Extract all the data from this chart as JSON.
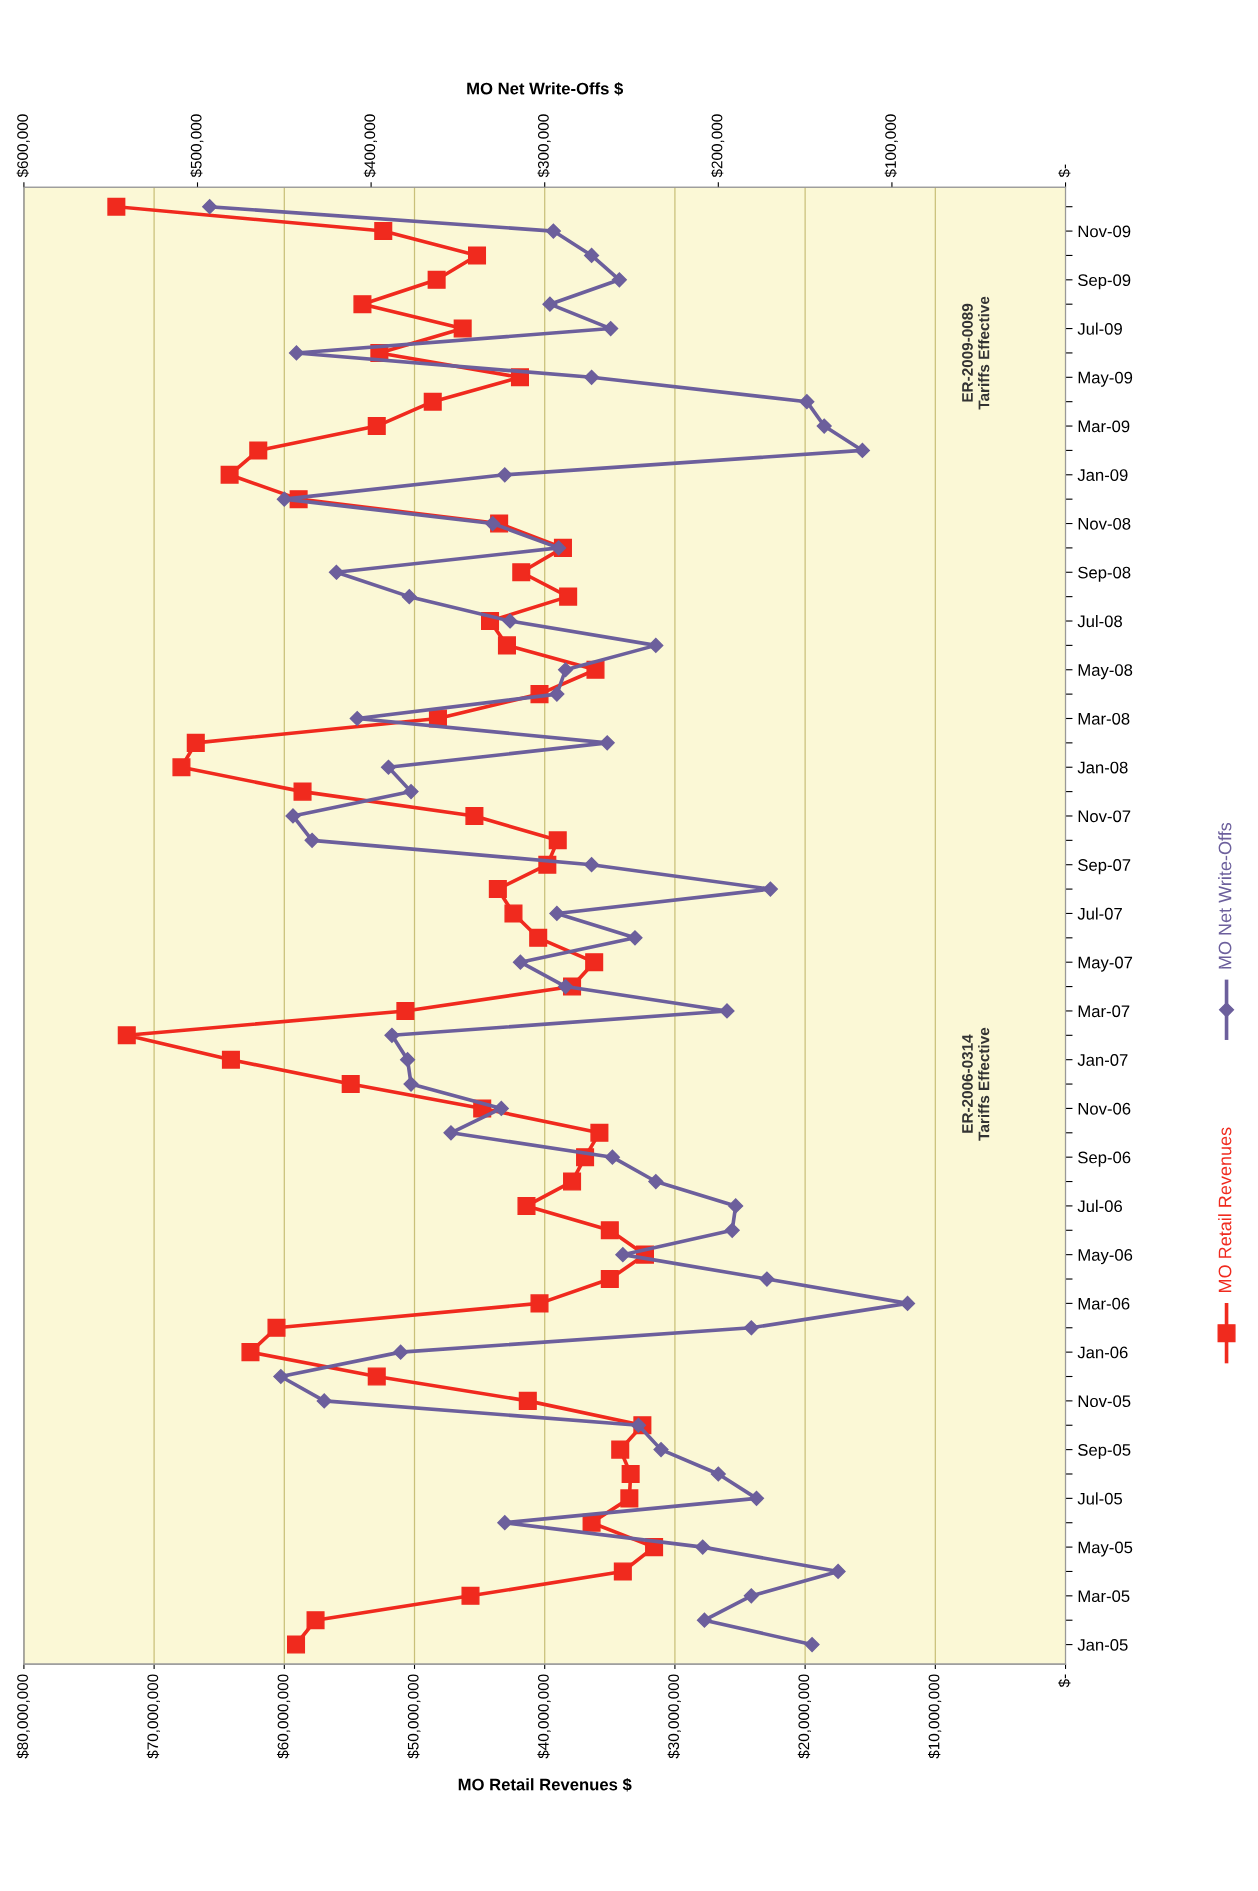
{
  "chart_data": {
    "type": "line",
    "orientation": "horizontal",
    "xlabel": "MO Retail Revenues $",
    "x2label": "MO Net Write-Offs $",
    "categories": [
      null,
      "Nov-09",
      null,
      "Sep-09",
      null,
      "Jul-09",
      null,
      "May-09",
      null,
      "Mar-09",
      null,
      "Jan-09",
      null,
      "Nov-08",
      null,
      "Sep-08",
      null,
      "Jul-08",
      null,
      "May-08",
      null,
      "Mar-08",
      null,
      "Jan-08",
      null,
      "Nov-07",
      null,
      "Sep-07",
      null,
      "Jul-07",
      null,
      "May-07",
      null,
      "Mar-07",
      null,
      "Jan-07",
      null,
      "Nov-06",
      null,
      "Sep-06",
      null,
      "Jul-06",
      null,
      "May-06",
      null,
      "Mar-06",
      null,
      "Jan-06",
      null,
      "Nov-05",
      null,
      "Sep-05",
      null,
      "Jul-05",
      null,
      "May-05",
      null,
      "Mar-05",
      null,
      "Jan-05"
    ],
    "series": [
      {
        "name": "MO Retail Revenues",
        "color": "#f02a1e",
        "marker": "square",
        "values": [
          72900000,
          52400000,
          45200000,
          48300000,
          54000000,
          46300000,
          52700000,
          41900000,
          48600000,
          52900000,
          62000000,
          64200000,
          58900000,
          43500000,
          38600000,
          41800000,
          38200000,
          44200000,
          42900000,
          36100000,
          40400000,
          48200000,
          66800000,
          67900000,
          58600000,
          45400000,
          39000000,
          39800000,
          43600000,
          42400000,
          40500000,
          36200000,
          37900000,
          50700000,
          72100000,
          64100000,
          54900000,
          44800000,
          35800000,
          36900000,
          37900000,
          41400000,
          35000000,
          32300000,
          35000000,
          40400000,
          60600000,
          62600000,
          52900000,
          41300000,
          32500000,
          34200000,
          33400000,
          33500000,
          36400000,
          31600000,
          34000000,
          45700000,
          57600000,
          59100000
        ]
      },
      {
        "name": "MO Net Write-Offs",
        "color": "#6c5f9c",
        "marker": "diamond",
        "axis": "x2",
        "values": [
          493000,
          295000,
          273000,
          257000,
          297000,
          262000,
          443000,
          273000,
          149000,
          139000,
          117000,
          323000,
          450000,
          330000,
          292000,
          420000,
          378000,
          320000,
          236000,
          288000,
          293000,
          408000,
          264000,
          390000,
          377000,
          445000,
          434000,
          273000,
          170000,
          293000,
          248000,
          314000,
          288000,
          195000,
          388000,
          379000,
          377000,
          325000,
          354000,
          261000,
          236000,
          190000,
          192000,
          255000,
          172000,
          91000,
          181000,
          383000,
          452000,
          427000,
          246000,
          233000,
          200000,
          178000,
          323000,
          209000,
          131000,
          181000,
          208000,
          146000
        ]
      }
    ],
    "xlim": [
      80000000,
      0
    ],
    "xticks": [
      {
        "value": 80000000,
        "label": "$80,000,000"
      },
      {
        "value": 70000000,
        "label": "$70,000,000"
      },
      {
        "value": 60000000,
        "label": "$60,000,000"
      },
      {
        "value": 50000000,
        "label": "$50,000,000"
      },
      {
        "value": 40000000,
        "label": "$40,000,000"
      },
      {
        "value": 30000000,
        "label": "$30,000,000"
      },
      {
        "value": 20000000,
        "label": "$20,000,000"
      },
      {
        "value": 10000000,
        "label": "$10,000,000"
      },
      {
        "value": 0,
        "label": "$-"
      }
    ],
    "x2lim": [
      600000,
      0
    ],
    "x2ticks": [
      {
        "value": 600000,
        "label": "$600,000"
      },
      {
        "value": 500000,
        "label": "$500,000"
      },
      {
        "value": 400000,
        "label": "$400,000"
      },
      {
        "value": 300000,
        "label": "$300,000"
      },
      {
        "value": 200000,
        "label": "$200,000"
      },
      {
        "value": 100000,
        "label": "$100,000"
      },
      {
        "value": 0,
        "label": "$-"
      }
    ],
    "grid": "x",
    "legend": "right",
    "line_style": "solid",
    "annotations": [
      "ER-2009-0089\nTariffs Effective",
      "ER-2006-0314\nTariffs Effective"
    ]
  }
}
